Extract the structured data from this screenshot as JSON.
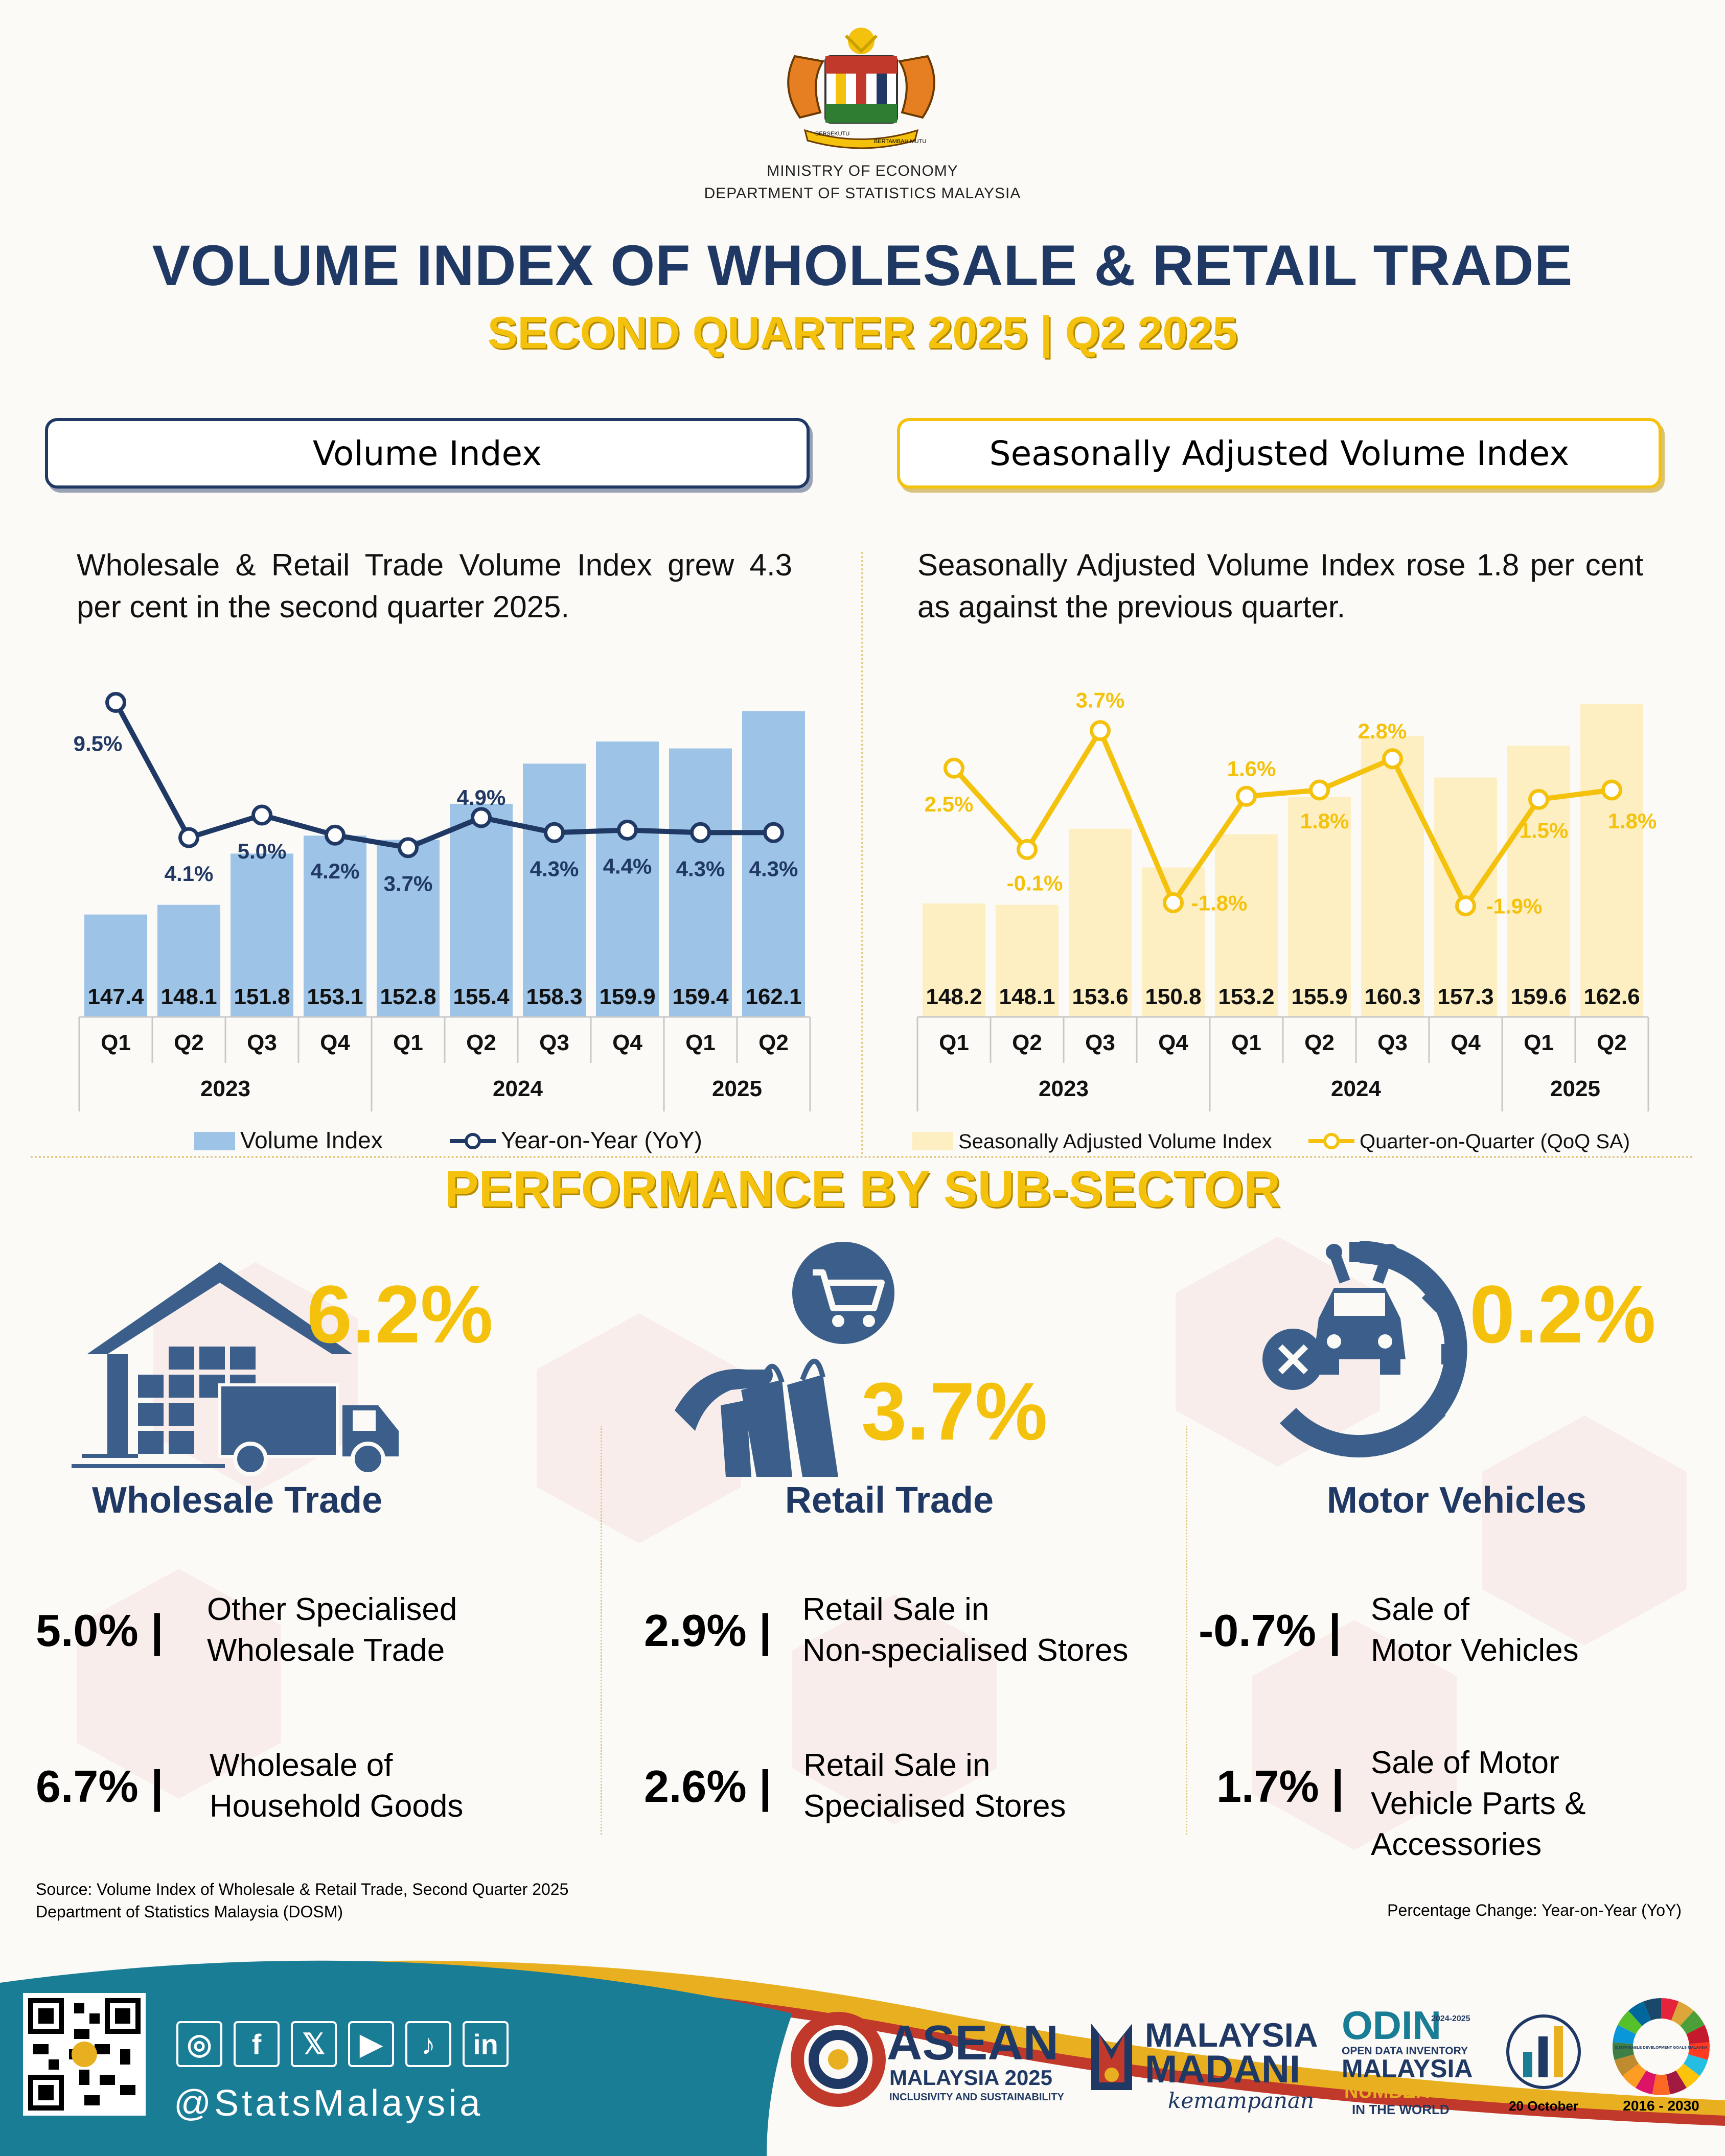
{
  "header": {
    "ministry": "MINISTRY OF ECONOMY",
    "department": "DEPARTMENT OF STATISTICS MALAYSIA",
    "crest_motto_left": "BERSEKUTU",
    "crest_motto_right": "BERTAMBAH MUTU",
    "title": "VOLUME INDEX OF WHOLESALE & RETAIL TRADE",
    "subtitle": "SECOND QUARTER 2025 | Q2 2025"
  },
  "volume_index": {
    "heading": "Volume Index",
    "description": "Wholesale & Retail Trade Volume Index grew 4.3 per cent in the second quarter 2025."
  },
  "seasonal": {
    "heading": "Seasonally Adjusted Volume Index",
    "description": "Seasonally Adjusted Volume Index rose 1.8 per cent as against the previous quarter."
  },
  "chart_data": [
    {
      "type": "bar",
      "categories": [
        "Q1",
        "Q2",
        "Q3",
        "Q4",
        "Q1",
        "Q2",
        "Q3",
        "Q4",
        "Q1",
        "Q2"
      ],
      "years": [
        {
          "label": "2023",
          "span": 4
        },
        {
          "label": "2024",
          "span": 4
        },
        {
          "label": "2025",
          "span": 2
        }
      ],
      "series": [
        {
          "name": "Volume Index",
          "type": "bar",
          "values": [
            147.4,
            148.1,
            151.8,
            153.1,
            152.8,
            155.4,
            158.3,
            159.9,
            159.4,
            162.1
          ]
        },
        {
          "name": "Year-on-Year (YoY)",
          "type": "line",
          "values": [
            9.5,
            4.1,
            5.0,
            4.2,
            3.7,
            4.9,
            4.3,
            4.4,
            4.3,
            4.3
          ],
          "labels": [
            "9.5%",
            "4.1%",
            "5.0%",
            "4.2%",
            "3.7%",
            "4.9%",
            "4.3%",
            "4.4%",
            "4.3%",
            "4.3%"
          ]
        }
      ],
      "bar_range": [
        140,
        164
      ],
      "line_range": [
        0,
        10
      ],
      "bar_color": "#9dc3e6",
      "line_color": "#1f3864",
      "legend": "bottom"
    },
    {
      "type": "bar",
      "categories": [
        "Q1",
        "Q2",
        "Q3",
        "Q4",
        "Q1",
        "Q2",
        "Q3",
        "Q4",
        "Q1",
        "Q2"
      ],
      "years": [
        {
          "label": "2023",
          "span": 4
        },
        {
          "label": "2024",
          "span": 4
        },
        {
          "label": "2025",
          "span": 2
        }
      ],
      "series": [
        {
          "name": "Seasonally Adjusted Volume Index",
          "type": "bar",
          "values": [
            148.2,
            148.1,
            153.6,
            150.8,
            153.2,
            155.9,
            160.3,
            157.3,
            159.6,
            162.6
          ]
        },
        {
          "name": "Quarter-on-Quarter (QoQ SA)",
          "type": "line",
          "values": [
            2.5,
            -0.1,
            3.7,
            -1.8,
            1.6,
            1.8,
            2.8,
            -1.9,
            1.5,
            1.8
          ],
          "labels": [
            "2.5%",
            "-0.1%",
            "3.7%",
            "-1.8%",
            "1.6%",
            "1.8%",
            "2.8%",
            "-1.9%",
            "1.5%",
            "1.8%"
          ]
        }
      ],
      "bar_range": [
        140,
        164
      ],
      "line_range": [
        -3,
        5
      ],
      "bar_color": "#fdefc2",
      "line_color": "#f4c20d",
      "legend": "bottom"
    }
  ],
  "performance": {
    "title": "PERFORMANCE BY SUB-SECTOR",
    "sectors": [
      {
        "name": "Wholesale Trade",
        "pct": "6.2%",
        "icon": "warehouse-truck-icon",
        "items": [
          {
            "value": "5.0%",
            "label1": "Other Specialised",
            "label2": "Wholesale Trade"
          },
          {
            "value": "6.7%",
            "label1": "Wholesale of",
            "label2": "Household Goods"
          }
        ]
      },
      {
        "name": "Retail Trade",
        "pct": "3.7%",
        "icon": "shopping-cart-bags-icon",
        "items": [
          {
            "value": "2.9%",
            "label1": "Retail Sale in",
            "label2": "Non-specialised Stores"
          },
          {
            "value": "2.6%",
            "label1": "Retail Sale in",
            "label2": "Specialised Stores"
          }
        ]
      },
      {
        "name": "Motor Vehicles",
        "pct": "0.2%",
        "icon": "car-gear-icon",
        "items": [
          {
            "value": "-0.7%",
            "label1": "Sale of",
            "label2": "Motor Vehicles"
          },
          {
            "value": "1.7%",
            "label1": "Sale of Motor",
            "label2": "Vehicle Parts &",
            "label3": "Accessories"
          }
        ]
      }
    ]
  },
  "source": {
    "line1": "Source: Volume Index of Wholesale & Retail Trade, Second Quarter 2025",
    "line2": "Department of Statistics Malaysia (DOSM)",
    "note": "Percentage Change: Year-on-Year (YoY)"
  },
  "footer": {
    "handle": "@StatsMalaysia",
    "social_icons": [
      "instagram-icon",
      "facebook-icon",
      "x-icon",
      "youtube-icon",
      "tiktok-icon",
      "linkedin-icon"
    ],
    "social_glyphs": [
      "◎",
      "f",
      "𝕏",
      "▶",
      "♪",
      "in"
    ],
    "asean_line1": "ASEAN",
    "asean_line2": "MALAYSIA 2025",
    "asean_line3": "INCLUSIVITY AND SUSTAINABILITY",
    "madani_line1": "MALAYSIA",
    "madani_line2": "MADANI",
    "madani_line3": "kemampanan",
    "odin_line1": "ODIN",
    "odin_years": "2024-2025",
    "odin_line2": "OPEN DATA INVENTORY",
    "odin_line3": "MALAYSIA",
    "odin_line4": "NUMBER ONE",
    "odin_line5": "IN THE WORLD",
    "wsd_date": "20 October",
    "sdg_years": "2016 - 2030",
    "sdg_label": "SUSTAINABLE DEVELOPMENT GOALS MALAYSIA"
  }
}
